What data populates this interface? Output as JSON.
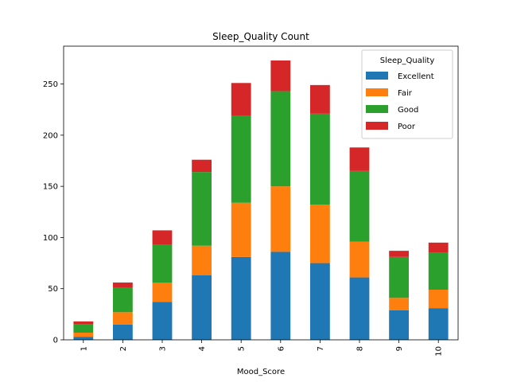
{
  "chart_data": {
    "type": "bar",
    "stacked": true,
    "title": "Sleep_Quality Count",
    "xlabel": "Mood_Score",
    "ylabel": "",
    "categories": [
      "1",
      "2",
      "3",
      "4",
      "5",
      "6",
      "7",
      "8",
      "9",
      "10"
    ],
    "ylim": [
      0,
      287
    ],
    "yticks": [
      0,
      50,
      100,
      150,
      200,
      250
    ],
    "legend_title": "Sleep_Quality",
    "legend_position": "top-right",
    "grid": false,
    "series": [
      {
        "name": "Excellent",
        "color": "#1f77b4",
        "values": [
          3,
          15,
          37,
          63,
          81,
          86,
          75,
          61,
          29,
          31
        ]
      },
      {
        "name": "Fair",
        "color": "#ff7f0e",
        "values": [
          4,
          12,
          19,
          29,
          53,
          64,
          57,
          35,
          12,
          18
        ]
      },
      {
        "name": "Good",
        "color": "#2ca02c",
        "values": [
          8,
          24,
          37,
          72,
          85,
          93,
          89,
          69,
          40,
          36
        ]
      },
      {
        "name": "Poor",
        "color": "#d62728",
        "values": [
          3,
          5,
          14,
          12,
          32,
          30,
          28,
          23,
          6,
          10
        ]
      }
    ]
  }
}
